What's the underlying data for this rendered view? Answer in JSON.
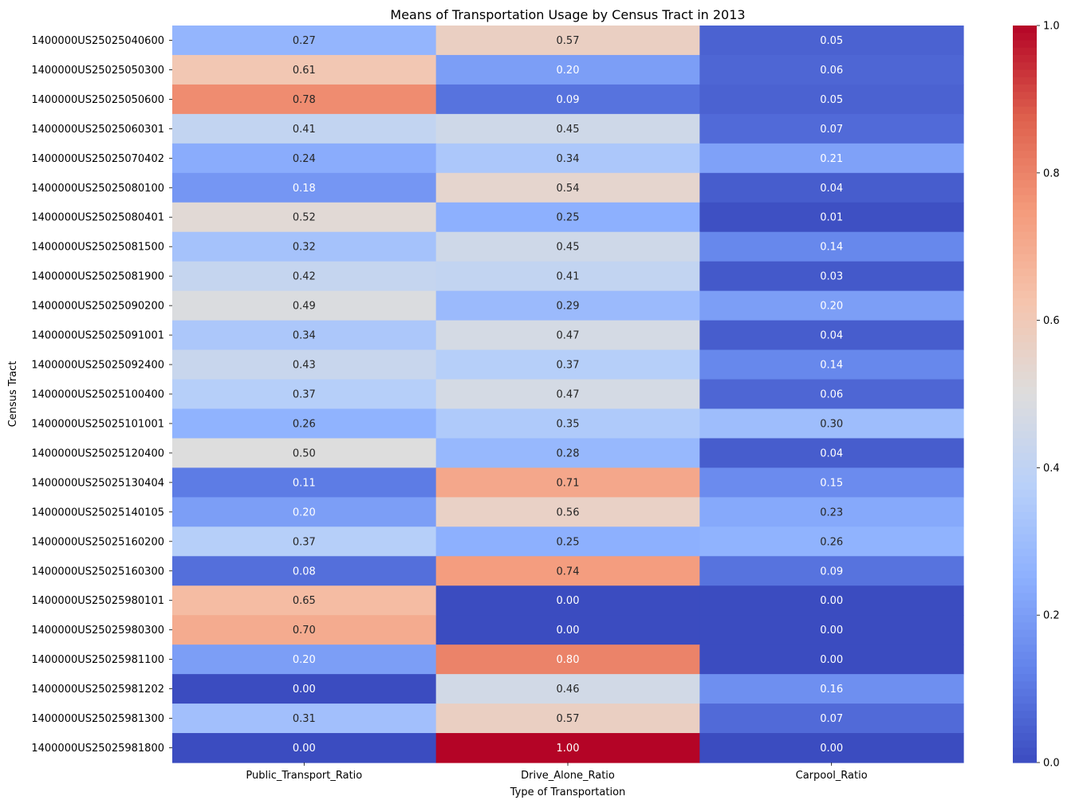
{
  "chart_data": {
    "type": "heatmap",
    "title": "Means of Transportation Usage by Census Tract in 2013",
    "xlabel": "Type of Transportation",
    "ylabel": "Census Tract",
    "colormap": "coolwarm",
    "colorbar": {
      "range": [
        0.0,
        1.0
      ],
      "ticks": [
        0.0,
        0.2,
        0.4,
        0.6,
        0.8,
        1.0
      ]
    },
    "columns": [
      "Public_Transport_Ratio",
      "Drive_Alone_Ratio",
      "Carpool_Ratio"
    ],
    "rows": [
      "1400000US25025040600",
      "1400000US25025050300",
      "1400000US25025050600",
      "1400000US25025060301",
      "1400000US25025070402",
      "1400000US25025080100",
      "1400000US25025080401",
      "1400000US25025081500",
      "1400000US25025081900",
      "1400000US25025090200",
      "1400000US25025091001",
      "1400000US25025092400",
      "1400000US25025100400",
      "1400000US25025101001",
      "1400000US25025120400",
      "1400000US25025130404",
      "1400000US25025140105",
      "1400000US25025160200",
      "1400000US25025160300",
      "1400000US25025980101",
      "1400000US25025980300",
      "1400000US25025981100",
      "1400000US25025981202",
      "1400000US25025981300",
      "1400000US25025981800"
    ],
    "values": [
      [
        0.27,
        0.57,
        0.05
      ],
      [
        0.61,
        0.2,
        0.06
      ],
      [
        0.78,
        0.09,
        0.05
      ],
      [
        0.41,
        0.45,
        0.07
      ],
      [
        0.24,
        0.34,
        0.21
      ],
      [
        0.18,
        0.54,
        0.04
      ],
      [
        0.52,
        0.25,
        0.01
      ],
      [
        0.32,
        0.45,
        0.14
      ],
      [
        0.42,
        0.41,
        0.03
      ],
      [
        0.49,
        0.29,
        0.2
      ],
      [
        0.34,
        0.47,
        0.04
      ],
      [
        0.43,
        0.37,
        0.14
      ],
      [
        0.37,
        0.47,
        0.06
      ],
      [
        0.26,
        0.35,
        0.3
      ],
      [
        0.5,
        0.28,
        0.04
      ],
      [
        0.11,
        0.71,
        0.15
      ],
      [
        0.2,
        0.56,
        0.23
      ],
      [
        0.37,
        0.25,
        0.26
      ],
      [
        0.08,
        0.74,
        0.09
      ],
      [
        0.65,
        0.0,
        0.0
      ],
      [
        0.7,
        0.0,
        0.0
      ],
      [
        0.2,
        0.8,
        0.0
      ],
      [
        0.0,
        0.46,
        0.16
      ],
      [
        0.31,
        0.57,
        0.07
      ],
      [
        0.0,
        1.0,
        0.0
      ]
    ]
  }
}
